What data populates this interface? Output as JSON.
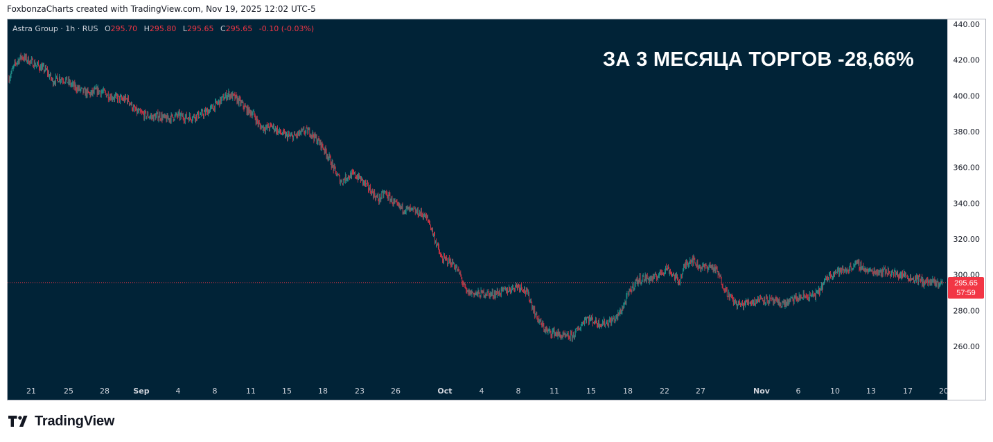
{
  "header": {
    "attribution": "FoxbonzaCharts created with TradingView.com, Nov 19, 2025 12:02 UTC-5"
  },
  "legend": {
    "symbol": "Astra Group · 1h · RUS",
    "open_label": "O",
    "open": "295.70",
    "high_label": "H",
    "high": "295.80",
    "low_label": "L",
    "low": "295.65",
    "close_label": "C",
    "close": "295.65",
    "change": "-0.10 (-0.03%)"
  },
  "headline": "ЗА 3 МЕСЯЦА ТОРГОВ -28,66%",
  "last_price": {
    "price": "295.65",
    "countdown": "57:59"
  },
  "brand": {
    "name": "TradingView"
  },
  "colors": {
    "background": "#012337",
    "up": "#26a69a",
    "down": "#f23645",
    "text": "#d1d4dc"
  },
  "chart_data": {
    "type": "candlestick",
    "symbol": "Astra Group",
    "interval": "1h",
    "ylim": [
      250,
      440
    ],
    "yticks": [
      260,
      280,
      300,
      320,
      340,
      360,
      380,
      400,
      420,
      440
    ],
    "ytick_labels": [
      "260.00",
      "280.00",
      "300.00",
      "320.00",
      "340.00",
      "360.00",
      "380.00",
      "400.00",
      "420.00",
      "440.00"
    ],
    "xtick_labels": [
      "21",
      "25",
      "28",
      "Sep",
      "4",
      "8",
      "11",
      "15",
      "18",
      "23",
      "26",
      "Oct",
      "4",
      "8",
      "11",
      "15",
      "18",
      "22",
      "27",
      "Nov",
      "6",
      "10",
      "13",
      "17",
      "20"
    ],
    "last_price": 295.65,
    "series": [
      {
        "name": "Astra Group",
        "values": [
          [
            410,
            418,
            422,
            420,
            418,
            416,
            414,
            408,
            410,
            409,
            406,
            404,
            402,
            401,
            403,
            402,
            400,
            399,
            398,
            398,
            392,
            390,
            389,
            388,
            389,
            387,
            388,
            389,
            388,
            388,
            389,
            390,
            392,
            395,
            398,
            401,
            399,
            396,
            392,
            390,
            383,
            382,
            383,
            380,
            378,
            377,
            378,
            380,
            380,
            376,
            372,
            366,
            358,
            352,
            355,
            356,
            354,
            350,
            346,
            342,
            346,
            342,
            338,
            337,
            336,
            335,
            334,
            330,
            320,
            309,
            308,
            306,
            300,
            290,
            290,
            289,
            290,
            289,
            290,
            291,
            292,
            294,
            293,
            288,
            278,
            272,
            268,
            268,
            266,
            265,
            266,
            270,
            276,
            275,
            273,
            273,
            274,
            276,
            282,
            290,
            296,
            298,
            298,
            298,
            301,
            304,
            300,
            296,
            306,
            309,
            305,
            304,
            305,
            302,
            294,
            288,
            284,
            283,
            285,
            285,
            287,
            286,
            285,
            284,
            284,
            286,
            287,
            288,
            288,
            289,
            295,
            300,
            302,
            302,
            303,
            306,
            305,
            302,
            302,
            302,
            302,
            301,
            300,
            300,
            298,
            298,
            296,
            296,
            295,
            295.65
          ]
        ]
      }
    ]
  }
}
